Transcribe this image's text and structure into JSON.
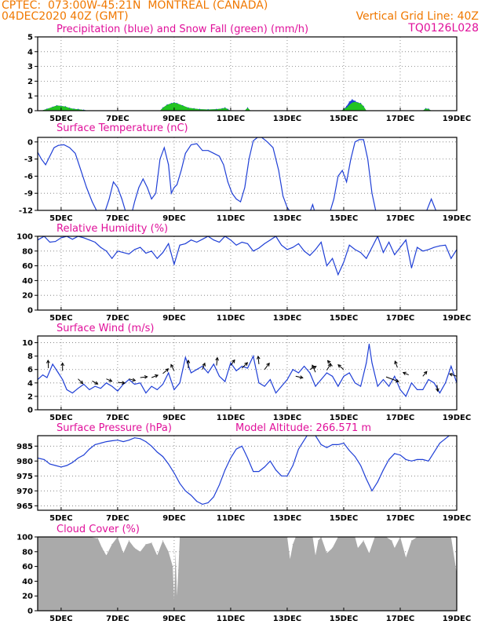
{
  "header": {
    "source": "CPTEC:",
    "location": "073:00W-45:21N  MONTREAL (CANADA)",
    "run": "04DEC2020 40Z (GMT)",
    "grid_note": "Vertical Grid Line: 40Z",
    "code": "TQ0126L028"
  },
  "colors": {
    "series": "#1f3fd6",
    "snow": "#22c422",
    "title": "#e0109a",
    "header": "#f07800",
    "cloud": "#aaaaaa"
  },
  "x_axis": {
    "labels": [
      "5DEC",
      "7DEC",
      "9DEC",
      "11DEC",
      "13DEC",
      "15DEC",
      "17DEC",
      "19DEC"
    ],
    "label_days": [
      5,
      7,
      9,
      11,
      13,
      15,
      17,
      19
    ],
    "xlim_days": [
      4.17,
      19.0
    ]
  },
  "chart_data": [
    {
      "type": "area",
      "title": "Precipitation (blue) and Snow Fall (green) (mm/h)",
      "yticks": [
        "5",
        "4",
        "3",
        "2",
        "1",
        "0"
      ],
      "ylim": [
        0,
        5
      ],
      "x": [
        4.3,
        4.5,
        4.7,
        4.85,
        5.0,
        5.15,
        5.3,
        5.45,
        5.6,
        5.8,
        6.0,
        8.5,
        8.6,
        8.75,
        8.9,
        9.0,
        9.1,
        9.3,
        9.5,
        9.7,
        9.9,
        10.2,
        10.5,
        10.7,
        10.8,
        10.9,
        11.0,
        11.5,
        11.6,
        11.7,
        14.9,
        15.0,
        15.1,
        15.2,
        15.3,
        15.4,
        15.5,
        15.6,
        15.7,
        15.8,
        17.8,
        17.9,
        18.0,
        18.1
      ],
      "snow": [
        0,
        0.12,
        0.25,
        0.35,
        0.32,
        0.28,
        0.18,
        0.12,
        0.1,
        0.05,
        0,
        0,
        0.2,
        0.4,
        0.5,
        0.55,
        0.5,
        0.35,
        0.2,
        0.15,
        0.1,
        0.08,
        0.1,
        0.15,
        0.2,
        0.1,
        0,
        0,
        0.2,
        0,
        0,
        0.1,
        0.2,
        0.4,
        0.55,
        0.6,
        0.55,
        0.5,
        0.3,
        0,
        0,
        0.15,
        0.12,
        0
      ],
      "precip": [
        0,
        0.12,
        0.25,
        0.35,
        0.32,
        0.28,
        0.18,
        0.12,
        0.1,
        0.05,
        0,
        0,
        0.2,
        0.4,
        0.5,
        0.55,
        0.5,
        0.35,
        0.2,
        0.15,
        0.1,
        0.08,
        0.1,
        0.15,
        0.2,
        0.1,
        0,
        0,
        0.2,
        0,
        0,
        0.1,
        0.3,
        0.6,
        0.75,
        0.65,
        0.55,
        0.5,
        0.3,
        0,
        0,
        0.15,
        0.12,
        0
      ]
    },
    {
      "type": "line",
      "title": "Surface Temperature (nC)",
      "yticks": [
        "0",
        "-3",
        "-6",
        "-9",
        "-12"
      ],
      "ylim": [
        -12,
        0.8
      ],
      "x": [
        4.17,
        4.3,
        4.45,
        4.6,
        4.75,
        4.9,
        5.1,
        5.3,
        5.5,
        5.7,
        5.9,
        6.1,
        6.3,
        6.5,
        6.7,
        6.85,
        7.0,
        7.15,
        7.3,
        7.45,
        7.6,
        7.75,
        7.9,
        8.05,
        8.2,
        8.35,
        8.5,
        8.65,
        8.8,
        8.9,
        9.0,
        9.1,
        9.25,
        9.4,
        9.6,
        9.8,
        10.0,
        10.2,
        10.4,
        10.6,
        10.75,
        10.9,
        11.05,
        11.2,
        11.35,
        11.5,
        11.65,
        11.8,
        11.95,
        12.1,
        12.3,
        12.5,
        12.7,
        12.85,
        13.0,
        13.15,
        13.3,
        13.45,
        13.6,
        13.75,
        13.9,
        14.05,
        14.2,
        14.35,
        14.5,
        14.65,
        14.8,
        14.95,
        15.1,
        15.25,
        15.4,
        15.55,
        15.7,
        15.85,
        16.0,
        16.15,
        16.3,
        16.5,
        16.7,
        16.9,
        17.1,
        17.3,
        17.5,
        17.7,
        17.9,
        18.1,
        18.3,
        18.5,
        18.7,
        18.85,
        19.0
      ],
      "values": [
        -1.8,
        -3,
        -4,
        -2.5,
        -1,
        -0.6,
        -0.5,
        -1,
        -2,
        -5,
        -8,
        -10.5,
        -12.5,
        -13,
        -10,
        -7,
        -8,
        -10,
        -12.5,
        -13.5,
        -10.5,
        -8,
        -6.5,
        -8,
        -10,
        -9,
        -3,
        -1,
        -4,
        -9,
        -8,
        -7.5,
        -5,
        -2,
        -0.5,
        -0.3,
        -1.5,
        -1.5,
        -2,
        -2.5,
        -4,
        -7,
        -9,
        -10,
        -10.5,
        -8,
        -3,
        0.2,
        0.8,
        0.8,
        0,
        -1,
        -5,
        -9.5,
        -11.5,
        -12.5,
        -12.5,
        -12.5,
        -12.5,
        -13,
        -11,
        -13.5,
        -13,
        -12.5,
        -12.5,
        -10,
        -6,
        -5,
        -7,
        -3,
        0,
        0.4,
        0.4,
        -3,
        -9,
        -12.5,
        -13,
        -13,
        -14,
        -14,
        -12.5,
        -12.5,
        -13,
        -13.5,
        -12.5,
        -10,
        -12.5,
        -13.5,
        -13.5,
        -13.5,
        -13.5
      ]
    },
    {
      "type": "line",
      "title": "Relative Humidity (%)",
      "yticks": [
        "100",
        "80",
        "60",
        "40",
        "20",
        "0"
      ],
      "ylim": [
        0,
        100
      ],
      "x": [
        4.17,
        4.4,
        4.6,
        4.8,
        5.0,
        5.2,
        5.4,
        5.6,
        5.8,
        6.0,
        6.2,
        6.4,
        6.6,
        6.8,
        7.0,
        7.2,
        7.4,
        7.6,
        7.8,
        8.0,
        8.2,
        8.4,
        8.6,
        8.8,
        9.0,
        9.2,
        9.4,
        9.6,
        9.8,
        10.0,
        10.2,
        10.4,
        10.6,
        10.8,
        11.0,
        11.2,
        11.4,
        11.6,
        11.8,
        12.0,
        12.2,
        12.4,
        12.6,
        12.8,
        13.0,
        13.2,
        13.4,
        13.6,
        13.8,
        14.0,
        14.2,
        14.4,
        14.6,
        14.8,
        15.0,
        15.2,
        15.4,
        15.6,
        15.8,
        16.0,
        16.2,
        16.4,
        16.6,
        16.8,
        17.0,
        17.2,
        17.4,
        17.6,
        17.8,
        18.0,
        18.2,
        18.4,
        18.6,
        18.8,
        19.0
      ],
      "values": [
        95,
        100,
        92,
        93,
        98,
        100,
        96,
        100,
        98,
        95,
        92,
        85,
        80,
        70,
        80,
        78,
        76,
        82,
        85,
        77,
        80,
        70,
        78,
        90,
        62,
        88,
        90,
        95,
        92,
        96,
        100,
        95,
        92,
        100,
        95,
        88,
        92,
        90,
        80,
        84,
        90,
        95,
        100,
        88,
        82,
        85,
        90,
        80,
        74,
        82,
        92,
        60,
        70,
        48,
        65,
        88,
        82,
        78,
        70,
        85,
        100,
        78,
        92,
        75,
        85,
        95,
        57,
        85,
        80,
        82,
        85,
        87,
        88,
        70,
        82
      ]
    },
    {
      "type": "line",
      "title": "Surface Wind (m/s)",
      "yticks": [
        "10",
        "8",
        "6",
        "4",
        "2",
        "0"
      ],
      "ylim": [
        0,
        11
      ],
      "x": [
        4.17,
        4.35,
        4.5,
        4.7,
        4.9,
        5.05,
        5.2,
        5.4,
        5.6,
        5.8,
        6.0,
        6.2,
        6.4,
        6.6,
        6.8,
        7.0,
        7.2,
        7.4,
        7.6,
        7.8,
        8.0,
        8.2,
        8.4,
        8.6,
        8.8,
        9.0,
        9.2,
        9.4,
        9.6,
        9.8,
        10.0,
        10.2,
        10.4,
        10.6,
        10.8,
        11.0,
        11.2,
        11.4,
        11.6,
        11.8,
        12.0,
        12.2,
        12.4,
        12.6,
        12.8,
        13.0,
        13.2,
        13.4,
        13.6,
        13.8,
        14.0,
        14.2,
        14.4,
        14.6,
        14.8,
        15.0,
        15.2,
        15.4,
        15.6,
        15.8,
        15.9,
        16.0,
        16.2,
        16.4,
        16.6,
        16.8,
        17.0,
        17.2,
        17.4,
        17.6,
        17.8,
        18.0,
        18.2,
        18.4,
        18.6,
        18.8,
        19.0
      ],
      "values": [
        4.5,
        5.2,
        4.8,
        6.8,
        5.5,
        4.5,
        3.0,
        2.5,
        3.2,
        3.8,
        3.0,
        3.5,
        3.2,
        4.0,
        3.5,
        2.8,
        3.8,
        4.5,
        3.8,
        4.0,
        2.5,
        3.5,
        3.0,
        3.8,
        5.5,
        3.0,
        4.0,
        7.8,
        5.5,
        6.0,
        6.5,
        5.5,
        6.8,
        5.0,
        4.2,
        7.0,
        5.8,
        6.5,
        6.2,
        8.0,
        4.0,
        3.5,
        4.5,
        2.5,
        3.5,
        4.5,
        6.0,
        5.5,
        6.5,
        5.5,
        3.5,
        4.5,
        5.5,
        5.0,
        3.5,
        5.0,
        5.5,
        4.0,
        3.5,
        7.0,
        9.8,
        7.0,
        3.5,
        4.5,
        3.5,
        5.0,
        3.0,
        2.0,
        4.0,
        3.0,
        3.0,
        4.5,
        4.0,
        2.5,
        4.0,
        6.5,
        4.0
      ]
    },
    {
      "type": "line",
      "title": "Surface Pressure (hPa)",
      "annotation": "Model Altitude: 266.571  m",
      "yticks": [
        "985",
        "980",
        "975",
        "970",
        "965"
      ],
      "ylim": [
        963.5,
        988.5
      ],
      "x": [
        4.17,
        4.4,
        4.6,
        4.8,
        5.0,
        5.2,
        5.4,
        5.6,
        5.8,
        6.0,
        6.2,
        6.4,
        6.6,
        6.8,
        7.0,
        7.2,
        7.4,
        7.6,
        7.8,
        8.0,
        8.2,
        8.4,
        8.6,
        8.8,
        9.0,
        9.2,
        9.4,
        9.6,
        9.8,
        10.0,
        10.2,
        10.4,
        10.6,
        10.8,
        11.0,
        11.2,
        11.4,
        11.6,
        11.8,
        12.0,
        12.2,
        12.4,
        12.6,
        12.8,
        13.0,
        13.2,
        13.4,
        13.6,
        13.8,
        14.0,
        14.2,
        14.4,
        14.6,
        14.8,
        15.0,
        15.2,
        15.4,
        15.6,
        15.8,
        16.0,
        16.2,
        16.4,
        16.6,
        16.8,
        17.0,
        17.2,
        17.4,
        17.6,
        17.8,
        18.0,
        18.2,
        18.4,
        18.6,
        18.8,
        19.0
      ],
      "values": [
        981,
        980.5,
        979,
        978.5,
        978,
        978.5,
        979.5,
        981,
        982,
        984,
        985.5,
        986,
        986.5,
        986.8,
        987,
        986.5,
        987,
        987.8,
        987.5,
        986.5,
        985,
        983,
        981.5,
        979,
        976,
        972.5,
        970,
        968.5,
        966.5,
        965.5,
        966,
        968,
        972,
        977,
        981,
        984,
        985,
        981,
        976.5,
        976.5,
        978,
        980,
        977,
        975,
        975,
        978.5,
        984,
        987,
        990,
        988.5,
        985.5,
        984.5,
        985.5,
        985.5,
        986,
        983.5,
        981.5,
        978.5,
        974,
        970,
        973,
        977,
        980.5,
        982.5,
        982,
        980.5,
        980,
        980.5,
        980.5,
        980,
        983,
        986,
        987.5,
        989,
        989
      ]
    },
    {
      "type": "area",
      "title": "Cloud Cover (%)",
      "yticks": [
        "100",
        "80",
        "60",
        "40",
        "20",
        "0"
      ],
      "ylim": [
        0,
        100
      ],
      "x": [
        4.17,
        4.5,
        5.0,
        5.5,
        6.0,
        6.3,
        6.45,
        6.6,
        6.8,
        7.0,
        7.2,
        7.4,
        7.6,
        7.8,
        8.0,
        8.2,
        8.4,
        8.6,
        8.8,
        8.95,
        9.0,
        9.05,
        9.1,
        9.15,
        9.2,
        9.3,
        9.5,
        10.0,
        10.5,
        11.0,
        11.5,
        12.0,
        12.5,
        12.8,
        13.0,
        13.1,
        13.2,
        13.3,
        13.5,
        13.7,
        13.9,
        14.0,
        14.1,
        14.2,
        14.4,
        14.6,
        14.8,
        15.0,
        15.2,
        15.4,
        15.5,
        15.7,
        15.9,
        16.1,
        16.3,
        16.5,
        16.7,
        16.8,
        17.0,
        17.2,
        17.4,
        17.6,
        17.8,
        18.0,
        18.2,
        18.4,
        18.6,
        18.8,
        19.0
      ],
      "values": [
        100,
        100,
        100,
        100,
        100,
        98,
        85,
        75,
        90,
        100,
        78,
        95,
        85,
        80,
        90,
        92,
        75,
        95,
        80,
        60,
        15,
        80,
        20,
        55,
        100,
        100,
        100,
        100,
        100,
        100,
        100,
        100,
        100,
        100,
        100,
        70,
        90,
        100,
        100,
        100,
        100,
        75,
        95,
        100,
        78,
        85,
        100,
        100,
        100,
        100,
        85,
        95,
        78,
        100,
        100,
        100,
        95,
        85,
        100,
        72,
        95,
        100,
        100,
        100,
        100,
        100,
        100,
        100,
        50
      ]
    }
  ]
}
